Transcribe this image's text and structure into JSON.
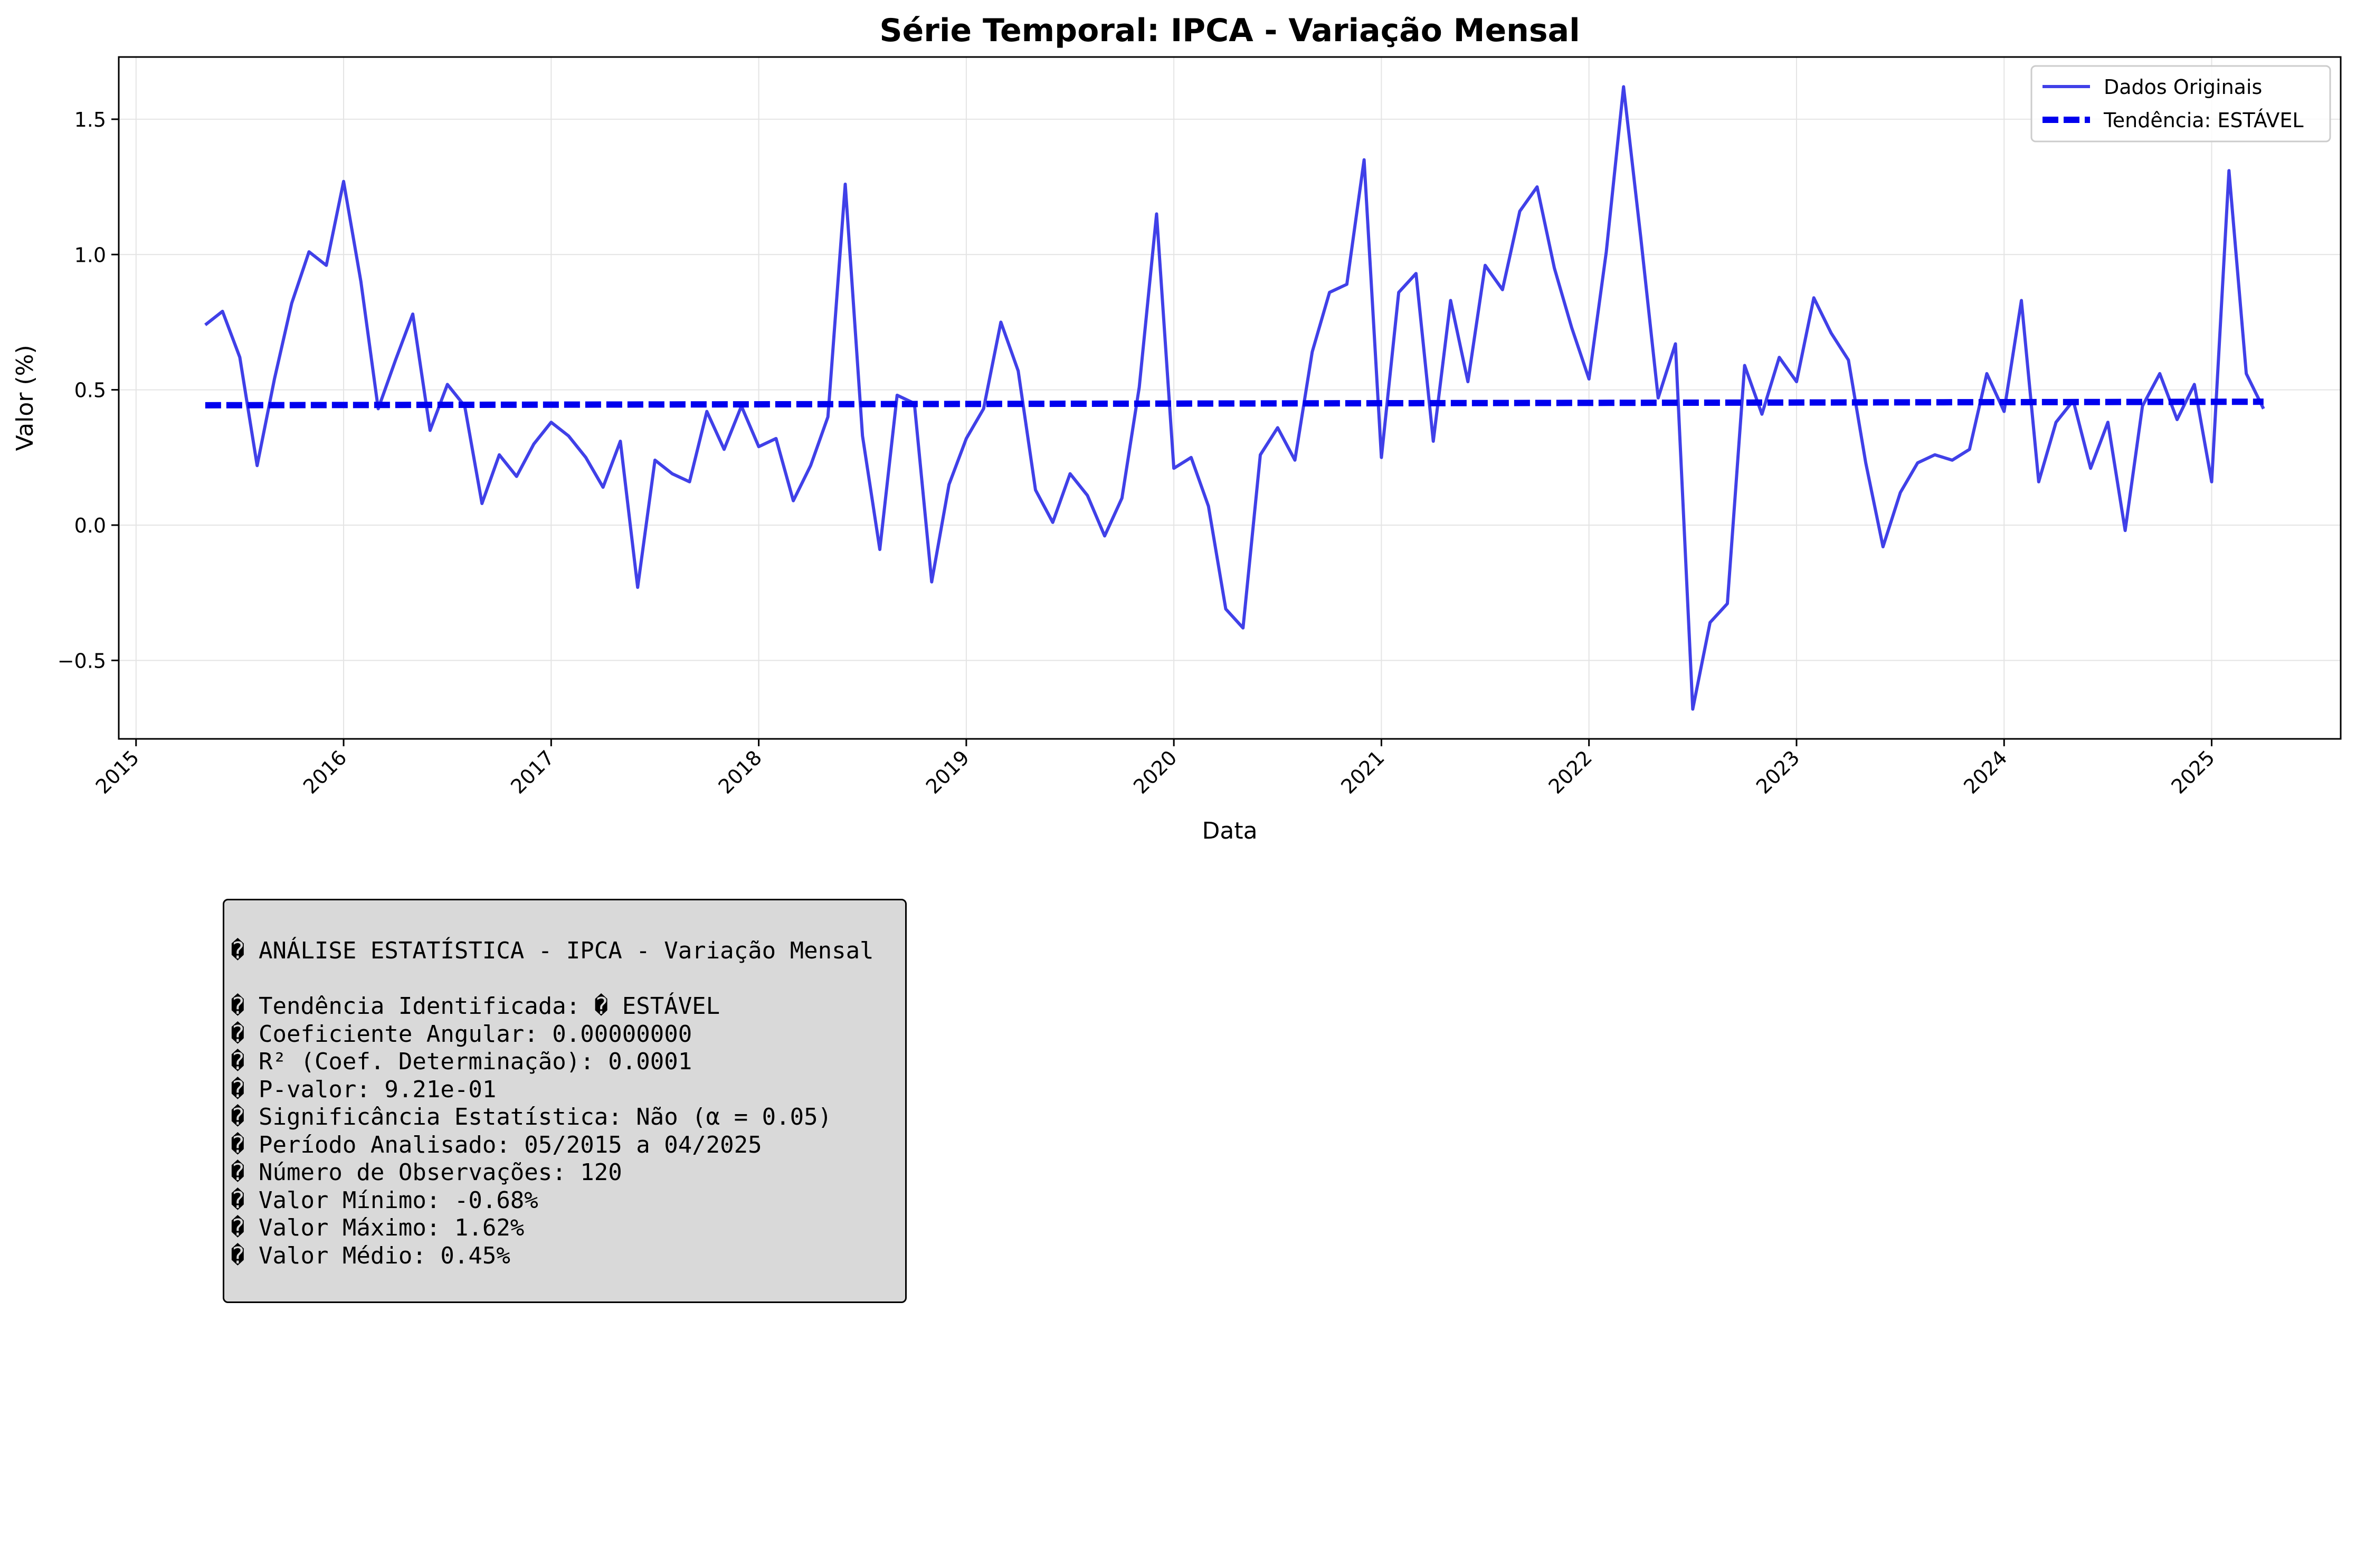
{
  "chart_data": {
    "type": "line",
    "title": "Série Temporal: IPCA - Variação Mensal",
    "xlabel": "Data",
    "ylabel": "Valor (%)",
    "x_tick_labels": [
      "2015",
      "2016",
      "2017",
      "2018",
      "2019",
      "2020",
      "2021",
      "2022",
      "2023",
      "2024",
      "2025"
    ],
    "y_tick_labels": [
      "−0.5",
      "0.0",
      "0.5",
      "1.0",
      "1.5"
    ],
    "y_ticks": [
      -0.5,
      0.0,
      0.5,
      1.0,
      1.5
    ],
    "xlim": [
      "2014-12-01",
      "2025-08-15"
    ],
    "ylim": [
      -0.79,
      1.73
    ],
    "grid": true,
    "legend_position": "upper right",
    "legend": [
      "Dados Originais",
      "Tendência: ESTÁVEL"
    ],
    "series": [
      {
        "name": "Dados Originais",
        "color": "#4040e8",
        "style": "solid",
        "start": "2015-05",
        "values": [
          0.74,
          0.79,
          0.62,
          0.22,
          0.54,
          0.82,
          1.01,
          0.96,
          1.27,
          0.9,
          0.43,
          0.61,
          0.78,
          0.35,
          0.52,
          0.44,
          0.08,
          0.26,
          0.18,
          0.3,
          0.38,
          0.33,
          0.25,
          0.14,
          0.31,
          -0.23,
          0.24,
          0.19,
          0.16,
          0.42,
          0.28,
          0.44,
          0.29,
          0.32,
          0.09,
          0.22,
          0.4,
          1.26,
          0.33,
          -0.09,
          0.48,
          0.45,
          -0.21,
          0.15,
          0.32,
          0.43,
          0.75,
          0.57,
          0.13,
          0.01,
          0.19,
          0.11,
          -0.04,
          0.1,
          0.51,
          1.15,
          0.21,
          0.25,
          0.07,
          -0.31,
          -0.38,
          0.26,
          0.36,
          0.24,
          0.64,
          0.86,
          0.89,
          1.35,
          0.25,
          0.86,
          0.93,
          0.31,
          0.83,
          0.53,
          0.96,
          0.87,
          1.16,
          1.25,
          0.95,
          0.73,
          0.54,
          1.01,
          1.62,
          1.06,
          0.47,
          0.67,
          -0.68,
          -0.36,
          -0.29,
          0.59,
          0.41,
          0.62,
          0.53,
          0.84,
          0.71,
          0.61,
          0.23,
          -0.08,
          0.12,
          0.23,
          0.26,
          0.24,
          0.28,
          0.56,
          0.42,
          0.83,
          0.16,
          0.38,
          0.46,
          0.21,
          0.38,
          -0.02,
          0.44,
          0.56,
          0.39,
          0.52,
          0.16,
          1.31,
          0.56,
          0.43
        ]
      },
      {
        "name": "Tendência: ESTÁVEL",
        "color": "#0000ee",
        "style": "dashed",
        "start": "2015-05",
        "end": "2025-04",
        "start_value": 0.443,
        "end_value": 0.456
      }
    ]
  },
  "stats_box": {
    "title": "� ANÁLISE ESTATÍSTICA - IPCA - Variação Mensal",
    "lines": [
      "� Tendência Identificada: � ESTÁVEL",
      "� Coeficiente Angular: 0.00000000",
      "� R² (Coef. Determinação): 0.0001",
      "� P-valor: 9.21e-01",
      "� Significância Estatística: Não (α = 0.05)",
      "� Período Analisado: 05/2015 a 04/2025",
      "� Número de Observações: 120",
      "� Valor Mínimo: -0.68%",
      "� Valor Máximo: 1.62%",
      "� Valor Médio: 0.45%"
    ]
  }
}
